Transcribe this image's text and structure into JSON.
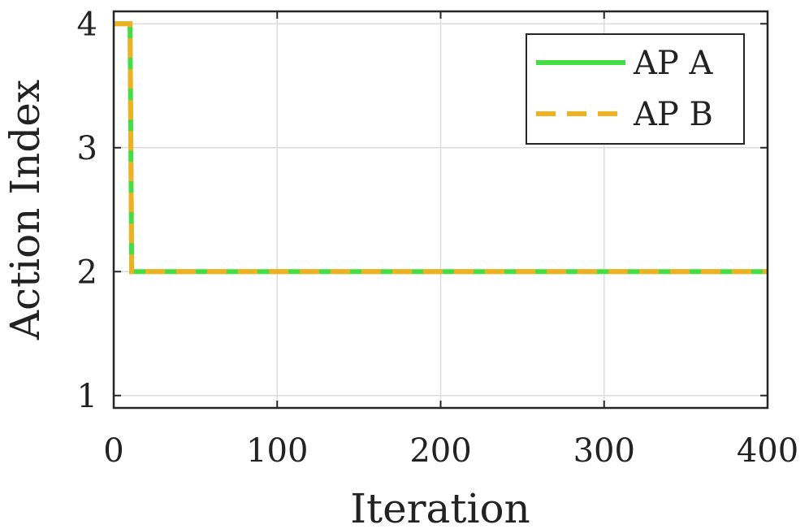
{
  "chart_data": {
    "type": "line",
    "xlabel": "Iteration",
    "ylabel": "Action Index",
    "xlim": [
      0,
      400
    ],
    "ylim": [
      0.9,
      4.1
    ],
    "xticks": [
      0,
      100,
      200,
      300,
      400
    ],
    "yticks": [
      1,
      2,
      3,
      4
    ],
    "xtick_labels": [
      "0",
      "100",
      "200",
      "300",
      "400"
    ],
    "ytick_labels": [
      "1",
      "2",
      "3",
      "4"
    ],
    "grid": true,
    "legend_position": "top-right",
    "series": [
      {
        "name": "AP A",
        "color": "#44dd44",
        "line_style": "solid",
        "x": [
          0,
          10,
          11,
          400
        ],
        "y": [
          4,
          4,
          2,
          2
        ]
      },
      {
        "name": "AP B",
        "color": "#eeb122",
        "line_style": "dashed",
        "x": [
          0,
          10,
          11,
          400
        ],
        "y": [
          4,
          4,
          2,
          2
        ]
      }
    ]
  }
}
